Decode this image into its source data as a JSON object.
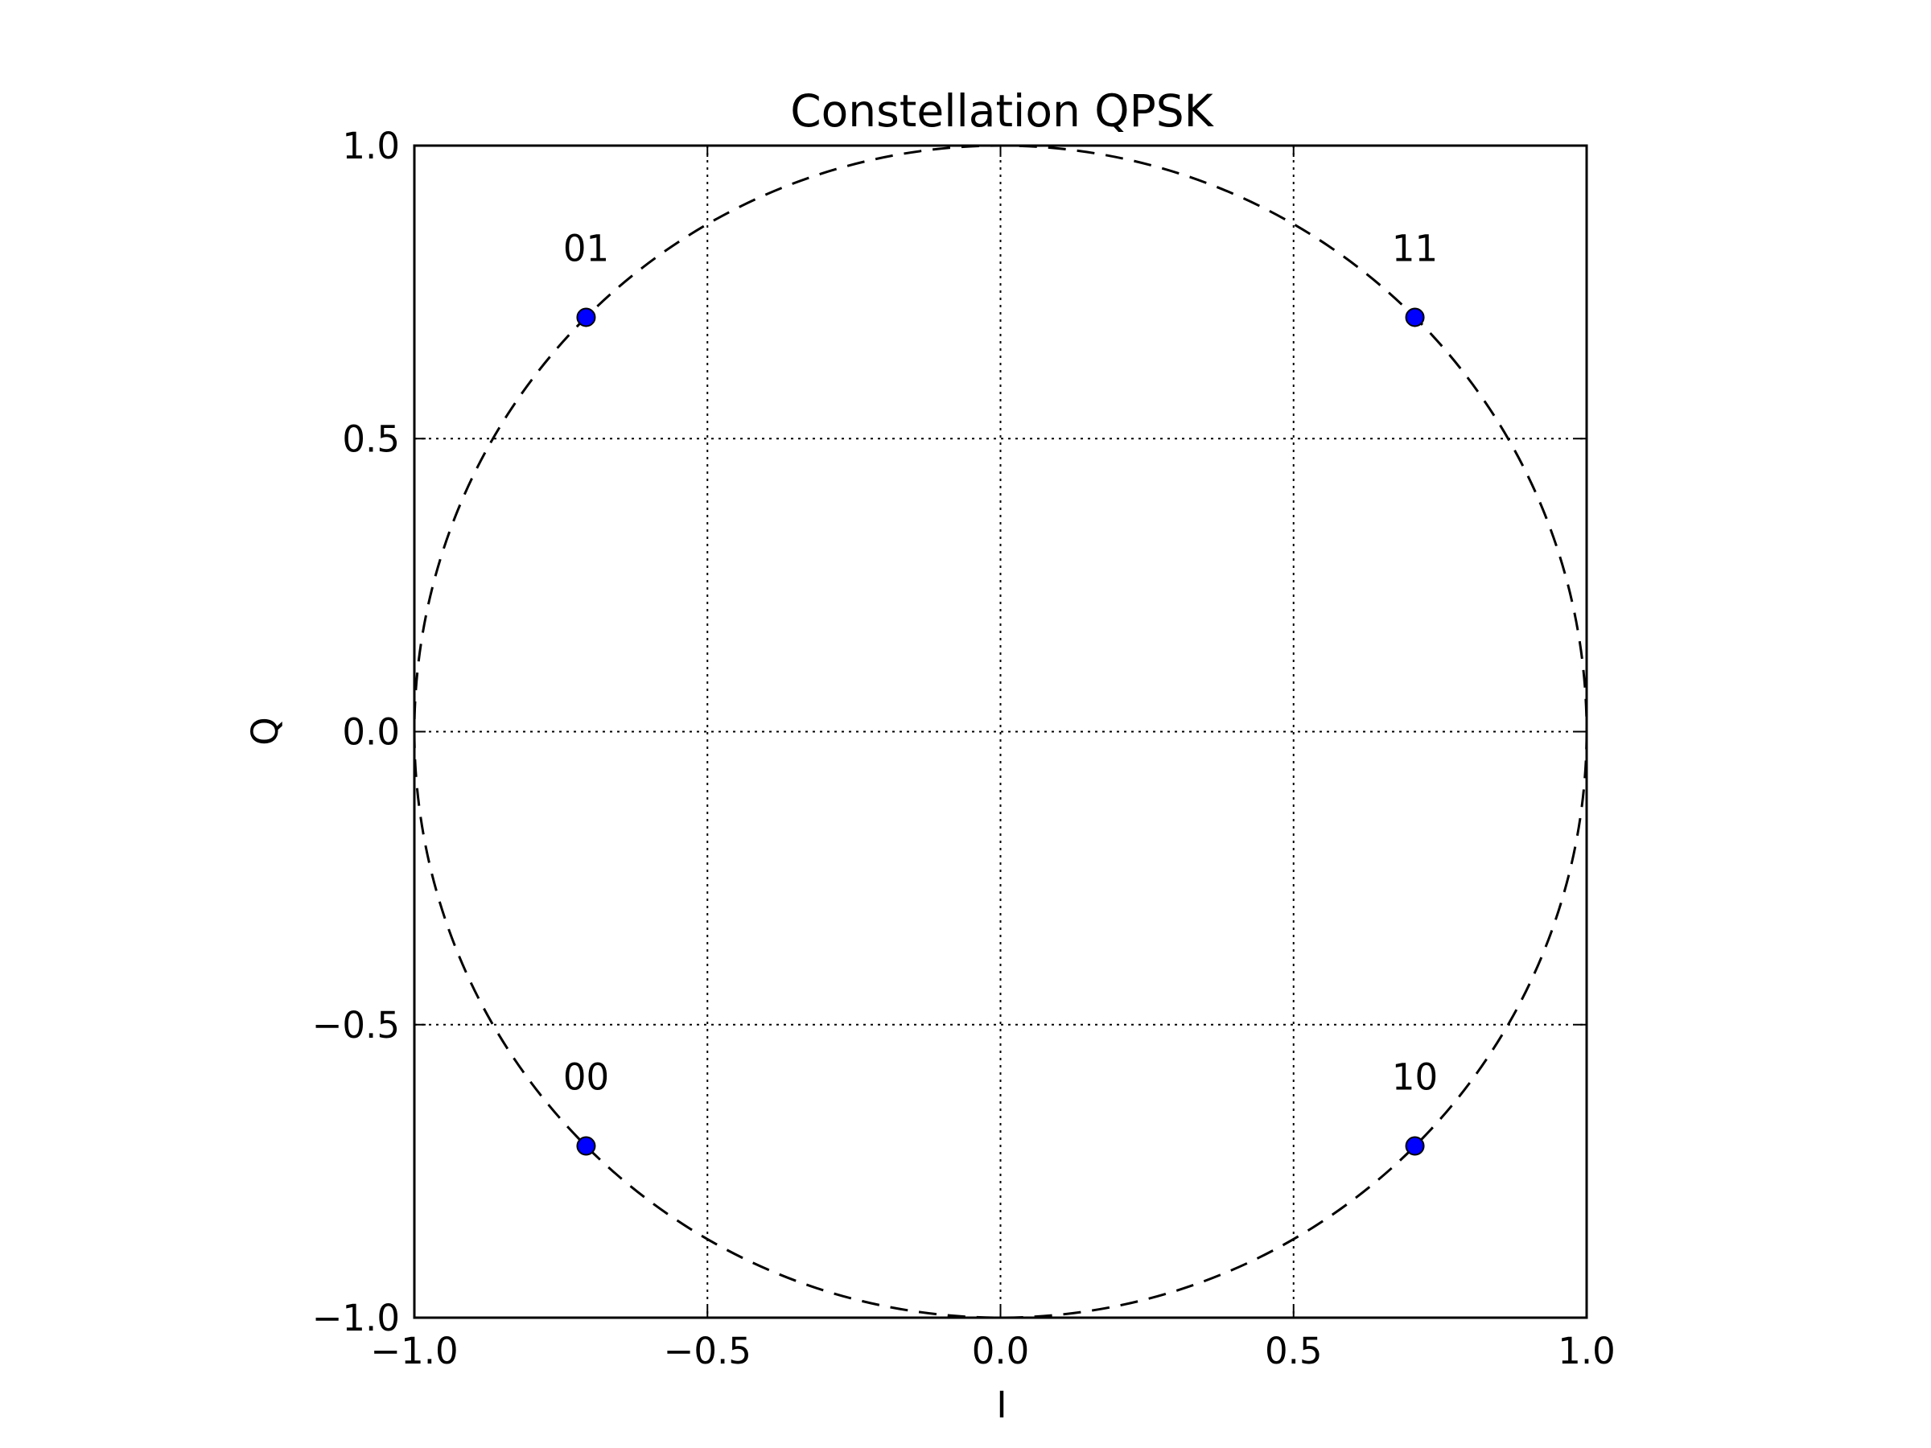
{
  "chart_data": {
    "type": "scatter",
    "title": "Constellation QPSK",
    "xlabel": "I",
    "ylabel": "Q",
    "xlim": [
      -1.0,
      1.0
    ],
    "ylim": [
      -1.0,
      1.0
    ],
    "xticks": [
      -1.0,
      -0.5,
      0.0,
      0.5,
      1.0
    ],
    "yticks": [
      -1.0,
      -0.5,
      0.0,
      0.5,
      1.0
    ],
    "xtick_labels": [
      "−1.0",
      "−0.5",
      "0.0",
      "0.5",
      "1.0"
    ],
    "ytick_labels": [
      "−1.0",
      "−0.5",
      "0.0",
      "0.5",
      "1.0"
    ],
    "grid": true,
    "grid_style": "dotted",
    "reference_circle": {
      "radius": 1.0,
      "style": "dashed",
      "color": "#000000"
    },
    "points": [
      {
        "label": "01",
        "x": -0.707,
        "y": 0.707
      },
      {
        "label": "11",
        "x": 0.707,
        "y": 0.707
      },
      {
        "label": "00",
        "x": -0.707,
        "y": -0.707
      },
      {
        "label": "10",
        "x": 0.707,
        "y": -0.707
      }
    ],
    "marker_color": "#0000ff",
    "marker_edge_color": "#000000"
  }
}
